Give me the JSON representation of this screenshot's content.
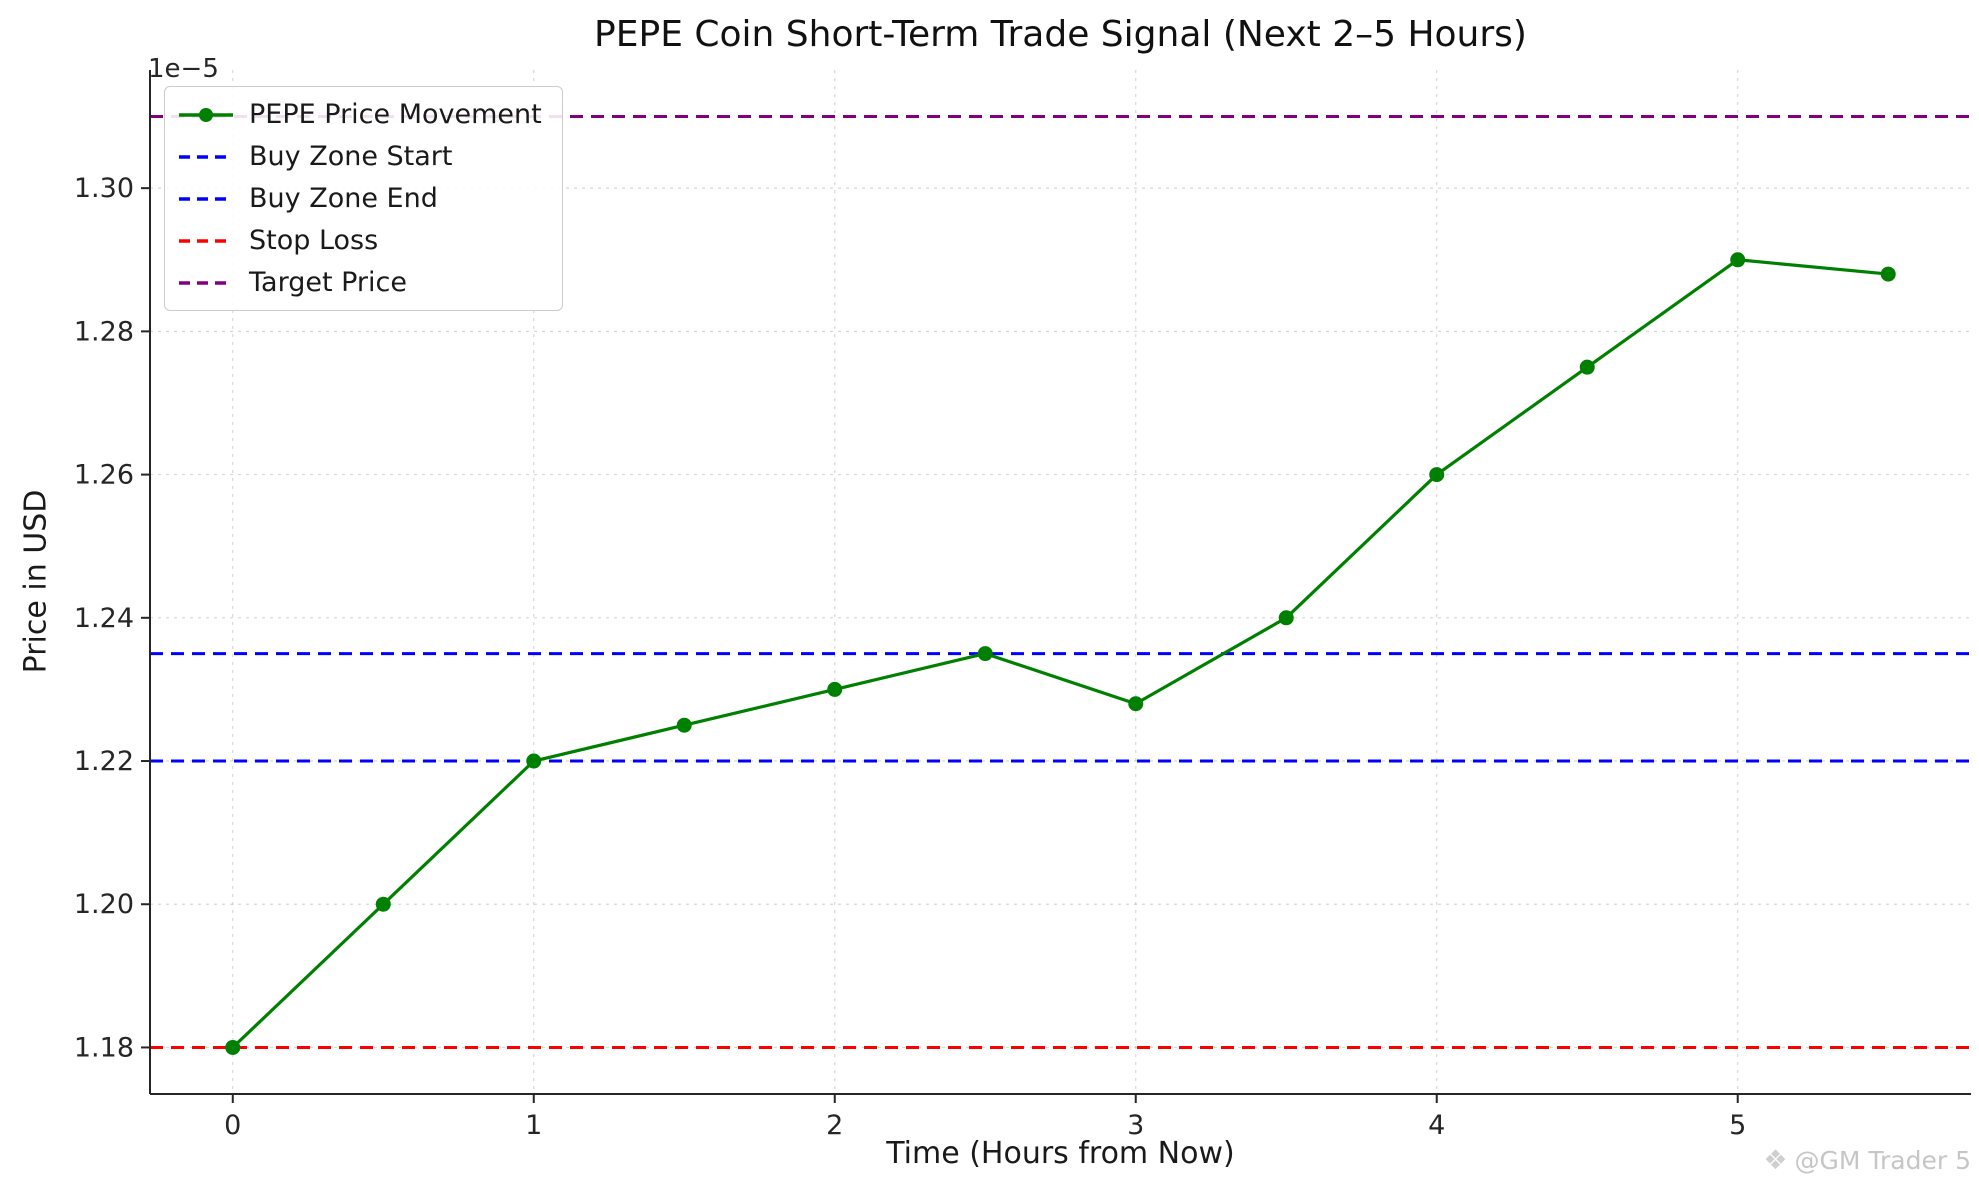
{
  "figure": {
    "watermark_icon": "❖",
    "watermark_text": "@GM Trader 5"
  },
  "chart_data": {
    "type": "line",
    "title": "PEPE Coin Short-Term Trade Signal (Next 2–5 Hours)",
    "xlabel": "Time (Hours from Now)",
    "ylabel": "Price in USD",
    "y_axis_offset_label": "1e−5",
    "y_unit_scale": "1e-5",
    "x": [
      0,
      0.5,
      1,
      1.5,
      2,
      2.5,
      3,
      3.5,
      4,
      4.5,
      5,
      5.5
    ],
    "series": [
      {
        "name": "PEPE Price Movement",
        "values": [
          1.18,
          1.2,
          1.22,
          1.225,
          1.23,
          1.235,
          1.228,
          1.24,
          1.26,
          1.275,
          1.29,
          1.288
        ],
        "color": "#008000",
        "style": "solid-with-markers"
      }
    ],
    "ref_lines": [
      {
        "name": "Buy Zone Start",
        "value": 1.22,
        "color": "#0000ff",
        "style": "dashed"
      },
      {
        "name": "Buy Zone End",
        "value": 1.235,
        "color": "#0000ff",
        "style": "dashed"
      },
      {
        "name": "Stop Loss",
        "value": 1.18,
        "color": "#ff0000",
        "style": "dashed"
      },
      {
        "name": "Target Price",
        "value": 1.31,
        "color": "#800080",
        "style": "dashed"
      }
    ],
    "legend": [
      {
        "label": "PEPE Price Movement",
        "color": "#008000",
        "dashed": false,
        "marker": true
      },
      {
        "label": "Buy Zone Start",
        "color": "#0000ff",
        "dashed": true,
        "marker": false
      },
      {
        "label": "Buy Zone End",
        "color": "#0000ff",
        "dashed": true,
        "marker": false
      },
      {
        "label": "Stop Loss",
        "color": "#ff0000",
        "dashed": true,
        "marker": false
      },
      {
        "label": "Target Price",
        "color": "#800080",
        "dashed": true,
        "marker": false
      }
    ],
    "legend_position": "upper-left",
    "xlim": [
      -0.275,
      5.775
    ],
    "ylim": [
      1.1735,
      1.3165
    ],
    "x_ticks": [
      0,
      1,
      2,
      3,
      4,
      5
    ],
    "x_tick_labels": [
      "0",
      "1",
      "2",
      "3",
      "4",
      "5"
    ],
    "y_ticks": [
      1.18,
      1.2,
      1.22,
      1.24,
      1.26,
      1.28,
      1.3
    ],
    "y_tick_labels": [
      "1.18",
      "1.20",
      "1.22",
      "1.24",
      "1.26",
      "1.28",
      "1.30"
    ],
    "grid": true
  }
}
